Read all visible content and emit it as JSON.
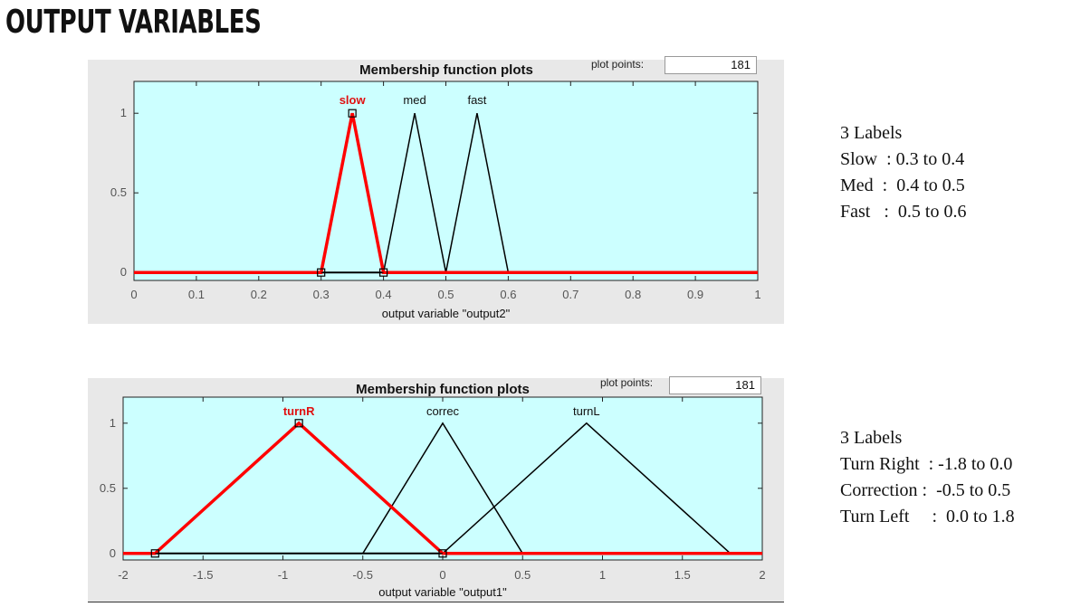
{
  "slide_title": "OUTPUT VARIABLES",
  "plot_points_label": "plot points:",
  "notes": [
    {
      "heading": "3 Labels",
      "rows": [
        "Slow  : 0.3 to 0.4",
        "Med  :  0.4 to 0.5",
        "Fast   :  0.5 to 0.6"
      ]
    },
    {
      "heading": "3 Labels",
      "rows": [
        "Turn Right  : -1.8 to 0.0",
        "Correction :  -0.5 to 0.5",
        "Turn Left     :  0.0 to 1.8"
      ]
    }
  ],
  "colors": {
    "plot_background": "#ccffff",
    "panel_background": "#e8e8e8",
    "selected_mf": "#ff0000",
    "mf_line": "#000000"
  },
  "chart_data": [
    {
      "type": "line",
      "title": "Membership function plots",
      "plot_points": "181",
      "xlabel": "output variable \"output2\"",
      "ylabel": "",
      "xlim": [
        0,
        1
      ],
      "ylim": [
        -0.05,
        1.2
      ],
      "xticks": [
        0,
        0.1,
        0.2,
        0.3,
        0.4,
        0.5,
        0.6,
        0.7,
        0.8,
        0.9,
        1
      ],
      "yticks": [
        0,
        0.5,
        1
      ],
      "xtick_labels": [
        "0",
        "0.1",
        "0.2",
        "0.3",
        "0.4",
        "0.5",
        "0.6",
        "0.7",
        "0.8",
        "0.9",
        "1"
      ],
      "ytick_labels": [
        "0",
        "0.5",
        "1"
      ],
      "selected": 0,
      "series": [
        {
          "name": "slow",
          "x": [
            0.3,
            0.35,
            0.4
          ],
          "y": [
            0,
            1,
            0
          ]
        },
        {
          "name": "med",
          "x": [
            0.4,
            0.45,
            0.5
          ],
          "y": [
            0,
            1,
            0
          ]
        },
        {
          "name": "fast",
          "x": [
            0.5,
            0.55,
            0.6
          ],
          "y": [
            0,
            1,
            0
          ]
        }
      ]
    },
    {
      "type": "line",
      "title": "Membership function plots",
      "plot_points": "181",
      "xlabel": "output variable \"output1\"",
      "ylabel": "",
      "xlim": [
        -2,
        2
      ],
      "ylim": [
        -0.05,
        1.2
      ],
      "xticks": [
        -2,
        -1.5,
        -1,
        -0.5,
        0,
        0.5,
        1,
        1.5,
        2
      ],
      "yticks": [
        0,
        0.5,
        1
      ],
      "xtick_labels": [
        "-2",
        "-1.5",
        "-1",
        "-0.5",
        "0",
        "0.5",
        "1",
        "1.5",
        "2"
      ],
      "ytick_labels": [
        "0",
        "0.5",
        "1"
      ],
      "selected": 0,
      "series": [
        {
          "name": "turnR",
          "x": [
            -1.8,
            -0.9,
            0
          ],
          "y": [
            0,
            1,
            0
          ]
        },
        {
          "name": "correc",
          "x": [
            -0.5,
            0,
            0.5
          ],
          "y": [
            0,
            1,
            0
          ]
        },
        {
          "name": "turnL",
          "x": [
            0,
            0.9,
            1.8
          ],
          "y": [
            0,
            1,
            0
          ]
        }
      ]
    }
  ]
}
